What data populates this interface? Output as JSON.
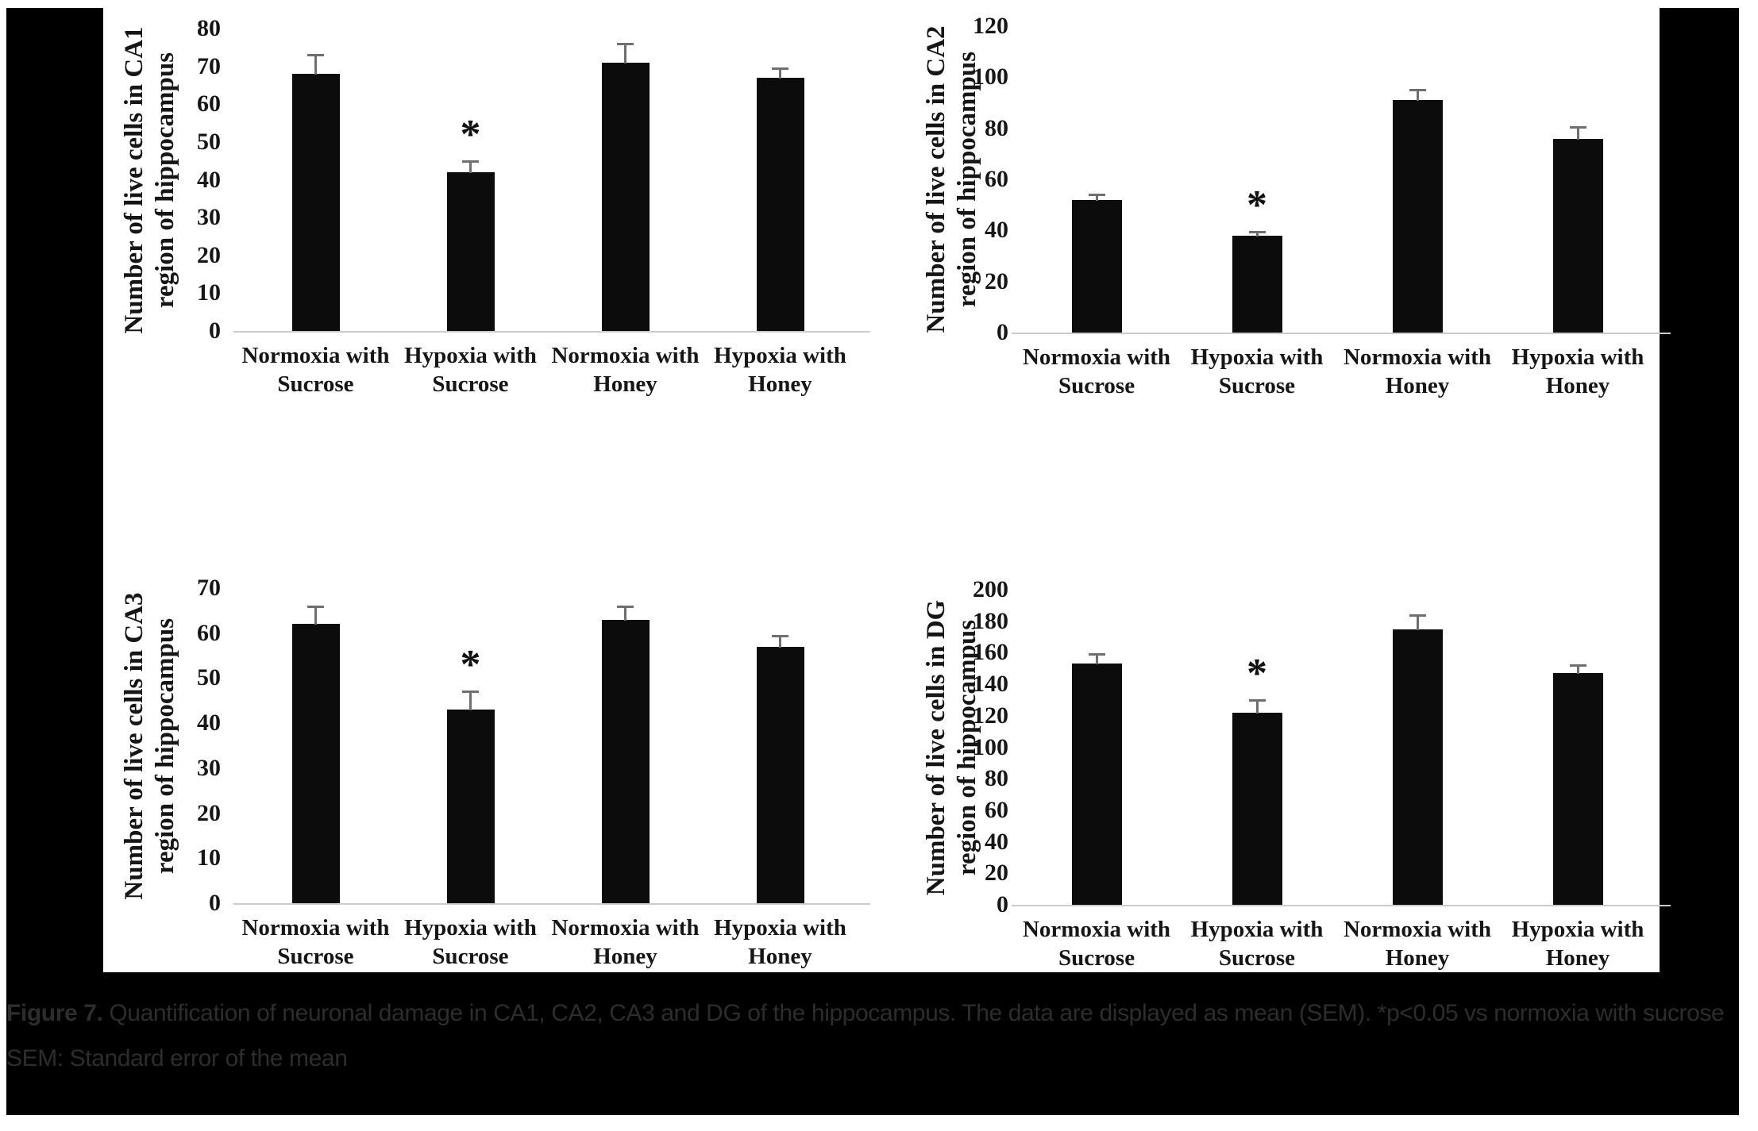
{
  "page": {
    "background_color": "#ffffff",
    "figure_background_color": "#000000",
    "panel_color": "#ffffff",
    "bar_color": "#0c0c0c",
    "error_bar_color": "#6f6f6f",
    "axis_line_color": "#cbcbcb",
    "chart_text_color": "#161616",
    "caption_text_color": "#2d2d2d"
  },
  "caption": {
    "label": "Figure 7.",
    "text": " Quantification of neuronal damage in CA1, CA2, CA3 and DG of the hippocampus. The data are displayed as mean (SEM). *p<0.05 vs normoxia with sucrose",
    "footnote": "SEM: Standard error of the mean"
  },
  "chart_data": [
    {
      "id": "CA1",
      "type": "bar",
      "title": "",
      "ylabel_lines": [
        "Number of live cells in CA1",
        "region of hippocampus"
      ],
      "categories": [
        "Normoxia with Sucrose",
        "Hypoxia with Sucrose",
        "Normoxia with Honey",
        "Hypoxia with Honey"
      ],
      "values": [
        68,
        42,
        71,
        67
      ],
      "errors": [
        5,
        3,
        5,
        2.5
      ],
      "significance": [
        "",
        "*",
        "",
        ""
      ],
      "ylim": [
        0,
        80
      ],
      "ytick_step": 10,
      "grid": false,
      "legend": null
    },
    {
      "id": "CA2",
      "type": "bar",
      "title": "",
      "ylabel_lines": [
        "Number of live cells in CA2",
        "region of hippocampus"
      ],
      "categories": [
        "Normoxia with Sucrose",
        "Hypoxia with Sucrose",
        "Normoxia with Honey",
        "Hypoxia with Honey"
      ],
      "values": [
        52,
        38,
        91,
        76
      ],
      "errors": [
        2,
        1.5,
        4,
        4.5
      ],
      "significance": [
        "",
        "*",
        "",
        ""
      ],
      "ylim": [
        0,
        120
      ],
      "ytick_step": 20,
      "grid": false,
      "legend": null
    },
    {
      "id": "CA3",
      "type": "bar",
      "title": "",
      "ylabel_lines": [
        "Number of live cells in CA3",
        "region of hippocampus"
      ],
      "categories": [
        "Normoxia with Sucrose",
        "Hypoxia with Sucrose",
        "Normoxia with Honey",
        "Hypoxia with Honey"
      ],
      "values": [
        62,
        43,
        63,
        57
      ],
      "errors": [
        4,
        4,
        3,
        2.5
      ],
      "significance": [
        "",
        "*",
        "",
        ""
      ],
      "ylim": [
        0,
        70
      ],
      "ytick_step": 10,
      "grid": false,
      "legend": null
    },
    {
      "id": "DG",
      "type": "bar",
      "title": "",
      "ylabel_lines": [
        "Number of live cells in DG",
        "region of hippocampus"
      ],
      "categories": [
        "Normoxia with Sucrose",
        "Hypoxia with Sucrose",
        "Normoxia with Honey",
        "Hypoxia with Honey"
      ],
      "values": [
        153,
        122,
        175,
        147
      ],
      "errors": [
        6,
        8,
        9,
        5
      ],
      "significance": [
        "",
        "*",
        "",
        ""
      ],
      "ylim": [
        0,
        200
      ],
      "ytick_step": 20,
      "grid": false,
      "legend": null
    }
  ]
}
